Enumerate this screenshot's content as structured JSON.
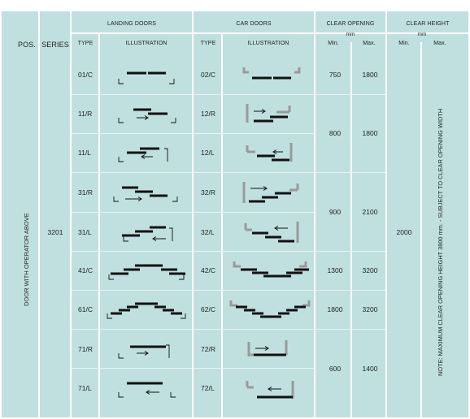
{
  "headers": {
    "pos": "POS.",
    "series": "SERIES",
    "landing_doors": "LANDING DOORS",
    "car_doors": "CAR DOORS",
    "clear_opening": "CLEAR OPENING",
    "clear_height": "CLEAR HEIGHT",
    "unit_mm": "mm",
    "type": "TYPE",
    "illustration": "ILLUSTRATION",
    "min": "Min.",
    "max": "Max."
  },
  "position_label": "DOOR WITH OPERATOR ABOVE",
  "series_value": "3201",
  "clear_height_value": "2000",
  "note": "NOTE: MAXIMUM CLEAR OPENING HEIGHT 3800 mm. - SUBJECT TO CLEAR OPENING WIDTH",
  "rows": [
    {
      "landing_type": "01/C",
      "car_type": "02/C"
    },
    {
      "landing_type": "11/R",
      "car_type": "12/R"
    },
    {
      "landing_type": "11/L",
      "car_type": "12/L"
    },
    {
      "landing_type": "31/R",
      "car_type": "32/R"
    },
    {
      "landing_type": "31/L",
      "car_type": "32/L"
    },
    {
      "landing_type": "41/C",
      "car_type": "42/C"
    },
    {
      "landing_type": "61/C",
      "car_type": "62/C"
    },
    {
      "landing_type": "71/R",
      "car_type": "72/R"
    },
    {
      "landing_type": "71/L",
      "car_type": "72/L"
    }
  ],
  "clear_opening": [
    {
      "min": "750",
      "max": "1800"
    },
    {
      "min": "800",
      "max": "1800"
    },
    {
      "min": "900",
      "max": "2100"
    },
    {
      "min": "1300",
      "max": "3200"
    },
    {
      "min": "1800",
      "max": "3200"
    },
    {
      "min": "600",
      "max": "1400"
    }
  ]
}
